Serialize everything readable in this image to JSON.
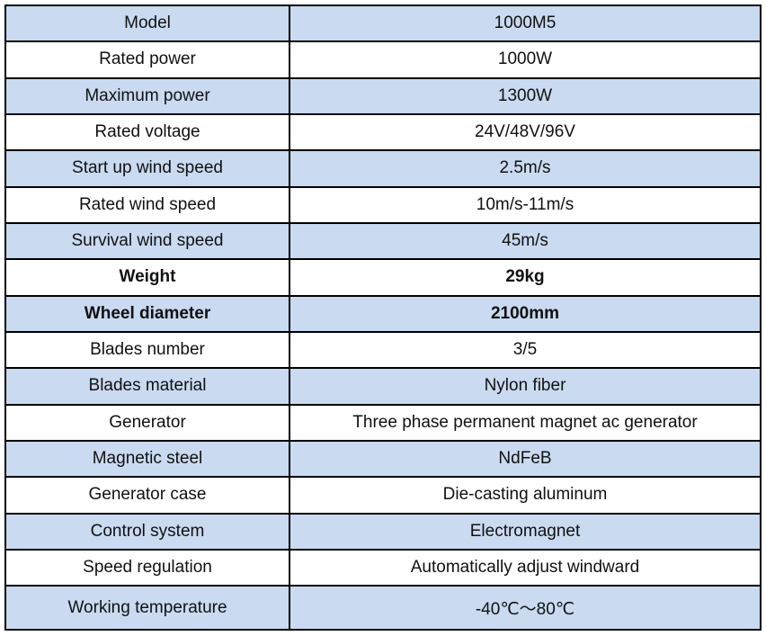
{
  "page": {
    "background_color": "#ffffff"
  },
  "table": {
    "grid_color": "#000000",
    "alt_row_color": "#C9DAF1",
    "text_color": "#111111",
    "columns": [
      "label",
      "value"
    ],
    "rows": [
      {
        "label": "Model",
        "value": "1000M5",
        "bold": false
      },
      {
        "label": "Rated power",
        "value": "1000W",
        "bold": false
      },
      {
        "label": "Maximum power",
        "value": "1300W",
        "bold": false
      },
      {
        "label": "Rated voltage",
        "value": "24V/48V/96V",
        "bold": false
      },
      {
        "label": "Start up wind speed",
        "value": "2.5m/s",
        "bold": false
      },
      {
        "label": "Rated wind speed",
        "value": "10m/s-11m/s",
        "bold": false
      },
      {
        "label": "Survival wind speed",
        "value": "45m/s",
        "bold": false
      },
      {
        "label": "Weight",
        "value": "29kg",
        "bold": true
      },
      {
        "label": "Wheel diameter",
        "value": "2100mm",
        "bold": true
      },
      {
        "label": "Blades number",
        "value": "3/5",
        "bold": false
      },
      {
        "label": "Blades material",
        "value": "Nylon fiber",
        "bold": false
      },
      {
        "label": "Generator",
        "value": "Three phase permanent magnet ac generator",
        "bold": false
      },
      {
        "label": "Magnetic steel",
        "value": "NdFeB",
        "bold": false
      },
      {
        "label": "Generator case",
        "value": "Die-casting aluminum",
        "bold": false
      },
      {
        "label": "Control system",
        "value": "Electromagnet",
        "bold": false
      },
      {
        "label": "Speed regulation",
        "value": "Automatically adjust windward",
        "bold": false
      },
      {
        "label": "Working temperature",
        "value": "-40℃～80℃",
        "bold": false
      }
    ]
  }
}
